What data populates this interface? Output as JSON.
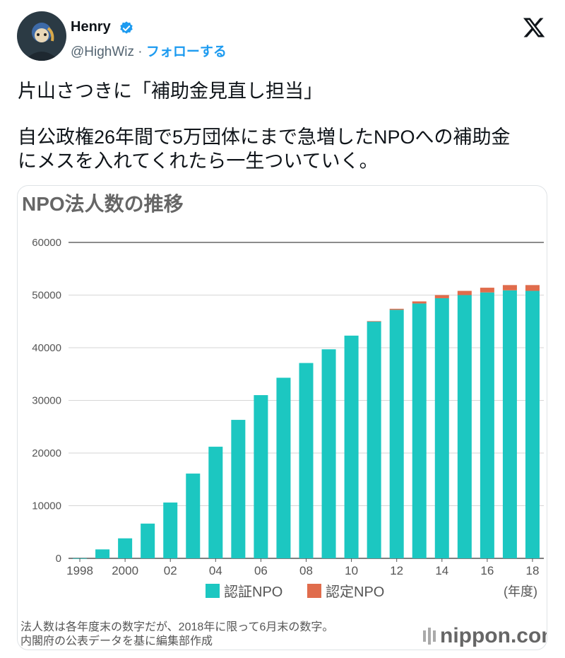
{
  "tweet": {
    "author_name": "Henry",
    "handle": "@HighWiz",
    "separator": " · ",
    "follow_label": "フォローする",
    "text_lines": [
      "片山さつきに「補助金見直し担当」",
      "自公政権26年間で5万団体にまで急増したNPOへの補助金",
      "にメスを入れてくれたら一生ついていく。"
    ],
    "icons": [
      "verified-badge-icon",
      "x-logo-icon"
    ],
    "colors": {
      "accent": "#1d9bf0",
      "text": "#0f1419",
      "muted": "#536471"
    }
  },
  "card": {
    "notes": [
      "法人数は各年度末の数字だが、2018年に限って6月末の数字。",
      "内閣府の公表データを基に編集部作成"
    ],
    "brand": "nippon.com"
  },
  "chart_data": {
    "type": "bar",
    "stacked": true,
    "title": "NPO法人数の推移",
    "categories": [
      "1998",
      "1999",
      "2000",
      "2001",
      "2002",
      "2003",
      "2004",
      "2005",
      "2006",
      "2007",
      "2008",
      "2009",
      "2010",
      "2011",
      "2012",
      "2013",
      "2014",
      "2015",
      "2016",
      "2017",
      "2018"
    ],
    "x_tick_labels": [
      "1998",
      "2000",
      "02",
      "04",
      "06",
      "08",
      "10",
      "12",
      "14",
      "16",
      "18"
    ],
    "x_tick_index": [
      0,
      2,
      4,
      6,
      8,
      10,
      12,
      14,
      16,
      18,
      20
    ],
    "xunit": "(年度)",
    "ylim": [
      0,
      60000
    ],
    "yticks": [
      0,
      10000,
      20000,
      30000,
      40000,
      50000,
      60000
    ],
    "series": [
      {
        "name": "認証NPO",
        "color": "#1cc7c1",
        "values": [
          20,
          1700,
          3800,
          6600,
          10600,
          16100,
          21200,
          26300,
          31000,
          34300,
          37100,
          39700,
          42300,
          45000,
          47200,
          48400,
          49400,
          50000,
          50500,
          50900,
          50800
        ]
      },
      {
        "name": "認定NPO",
        "color": "#e06c4c",
        "values": [
          0,
          0,
          0,
          0,
          0,
          0,
          0,
          0,
          0,
          0,
          0,
          0,
          0,
          50,
          200,
          400,
          600,
          800,
          900,
          1000,
          1100
        ]
      }
    ]
  }
}
